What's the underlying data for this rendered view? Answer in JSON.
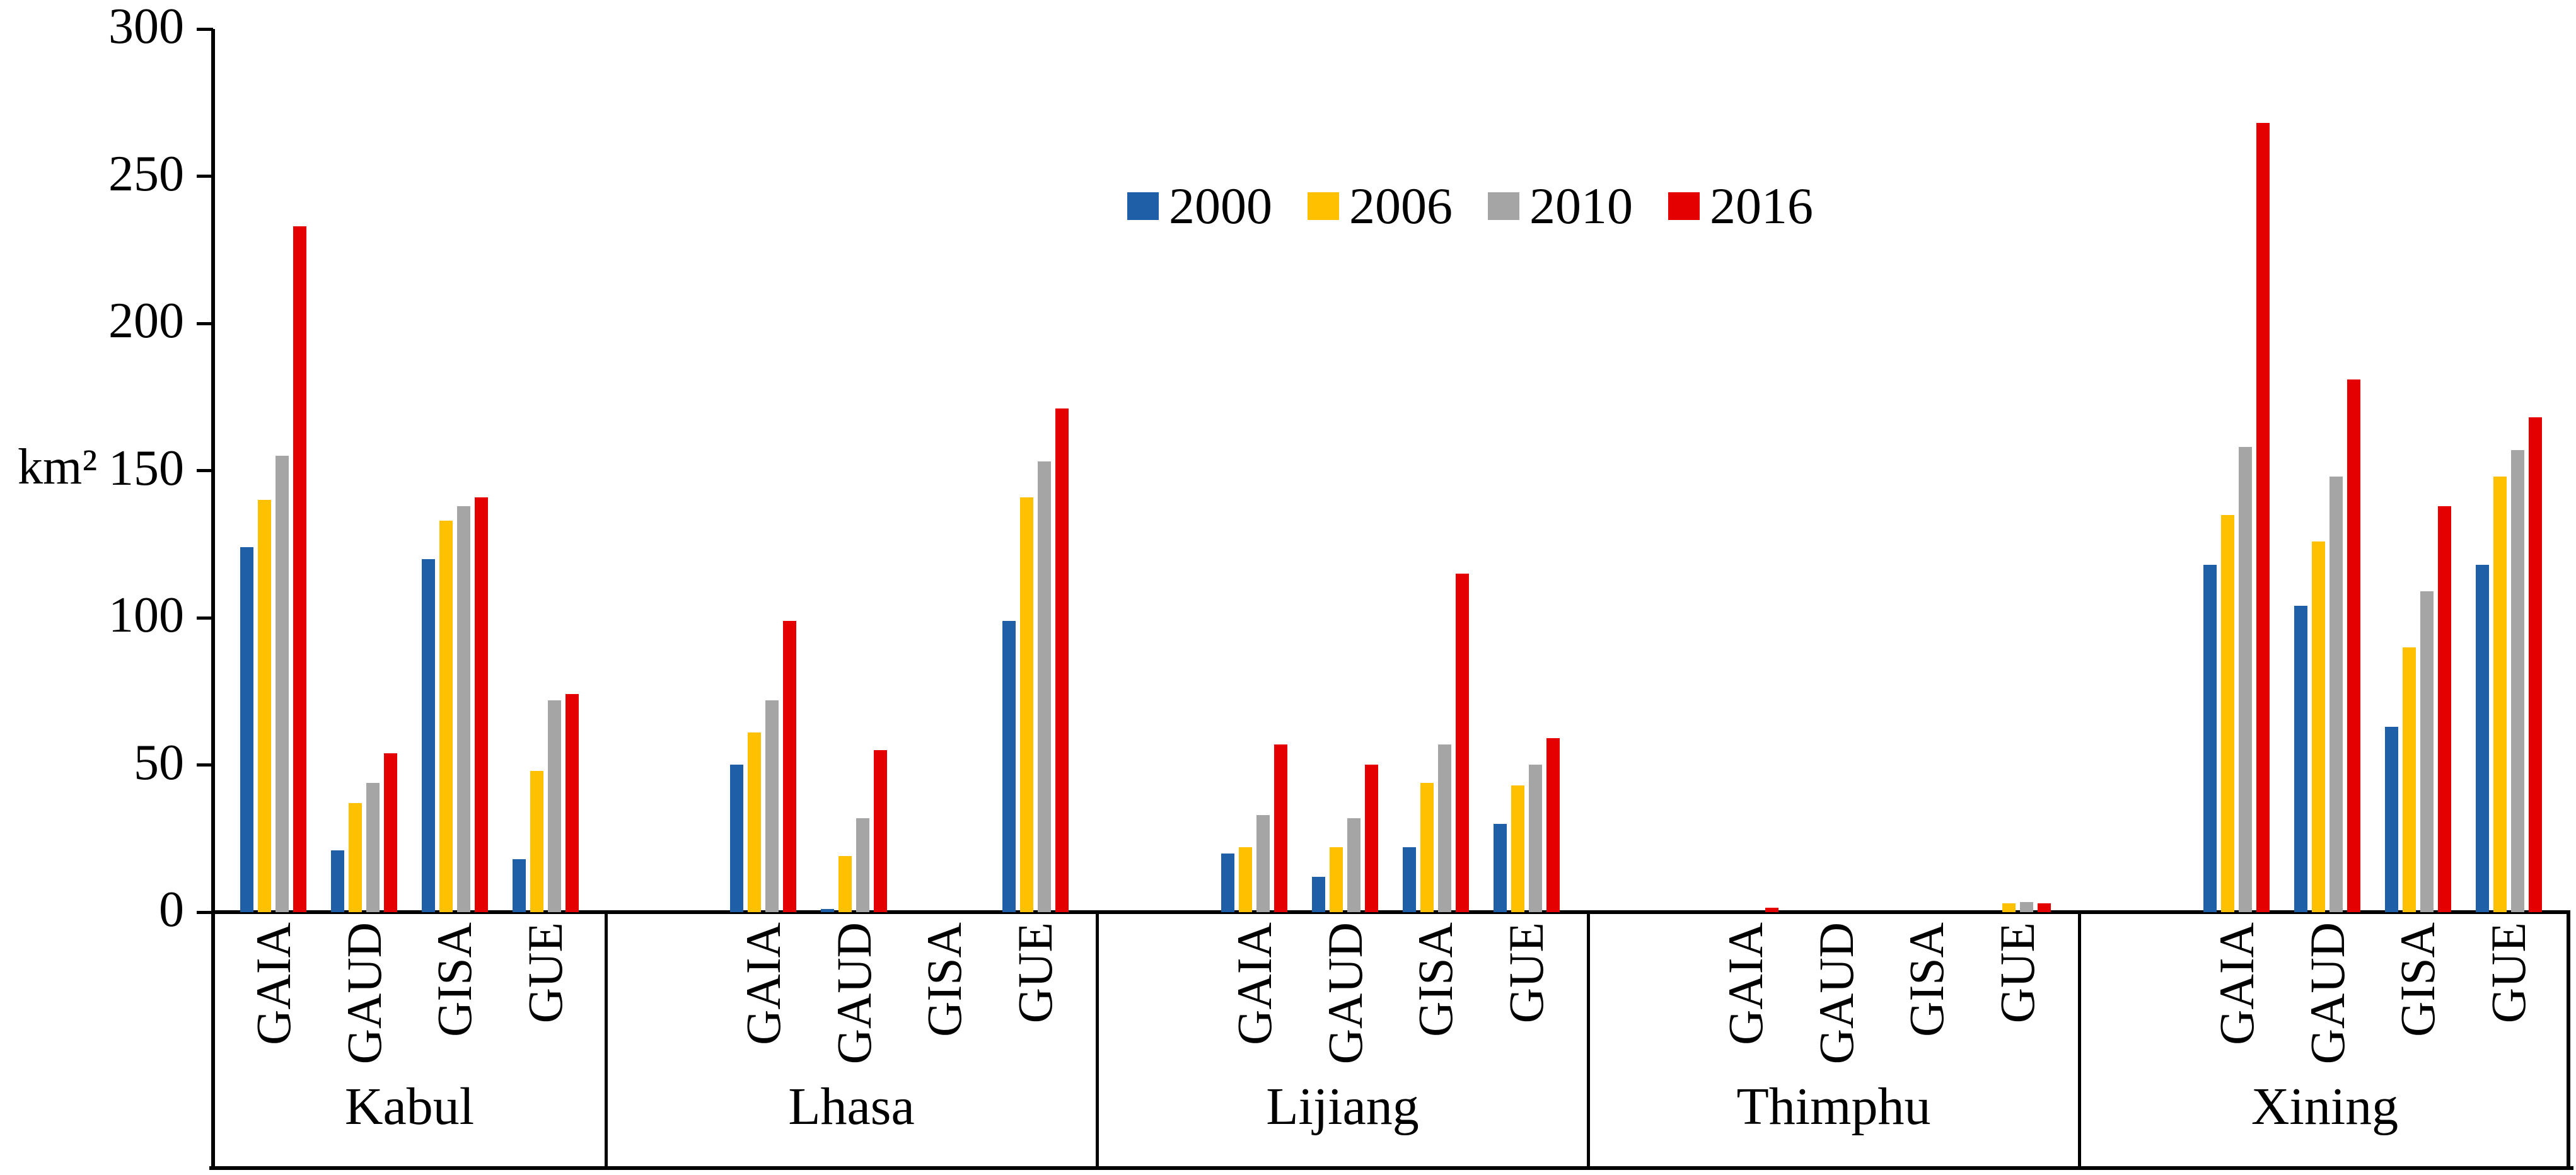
{
  "chart_data": {
    "type": "bar",
    "title": "",
    "ylabel": "km²",
    "ylim": [
      0,
      300
    ],
    "yticks": [
      0,
      50,
      100,
      150,
      200,
      250,
      300
    ],
    "legend_position": "top-center",
    "grid": false,
    "cities": [
      "Kabul",
      "Lhasa",
      "Lijiang",
      "Thimphu",
      "Xining"
    ],
    "group_labels": [
      "GAIA",
      "GAUD",
      "GISA",
      "GUE"
    ],
    "series": [
      {
        "name": "2000",
        "color": "#1F5FA8",
        "values": [
          [
            124,
            21,
            120,
            18
          ],
          [
            50,
            1,
            0,
            99
          ],
          [
            20,
            12,
            22,
            30
          ],
          [
            0,
            0,
            0,
            0
          ],
          [
            118,
            104,
            63,
            118
          ]
        ]
      },
      {
        "name": "2006",
        "color": "#FFC000",
        "values": [
          [
            140,
            37,
            133,
            48
          ],
          [
            61,
            19,
            0,
            141
          ],
          [
            22,
            22,
            44,
            43
          ],
          [
            0,
            0,
            0,
            3
          ],
          [
            135,
            126,
            90,
            148
          ]
        ]
      },
      {
        "name": "2010",
        "color": "#A5A5A5",
        "values": [
          [
            155,
            44,
            138,
            72
          ],
          [
            72,
            32,
            0,
            153
          ],
          [
            33,
            32,
            57,
            50
          ],
          [
            0,
            0,
            0,
            3.5
          ],
          [
            158,
            148,
            109,
            157
          ]
        ]
      },
      {
        "name": "2016",
        "color": "#E50000",
        "values": [
          [
            233,
            54,
            141,
            74
          ],
          [
            99,
            55,
            0,
            171
          ],
          [
            57,
            50,
            115,
            59
          ],
          [
            1.5,
            0,
            0,
            3
          ],
          [
            268,
            181,
            138,
            168
          ]
        ]
      }
    ],
    "axis_color": "#000000"
  }
}
